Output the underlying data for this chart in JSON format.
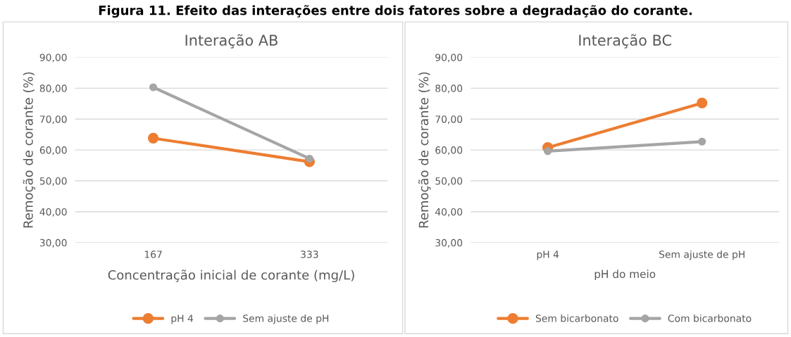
{
  "chart_data": [
    {
      "type": "line",
      "title": "Interação AB",
      "xlabel": "Concentração inicial de corante (mg/L)",
      "ylabel": "Remoção de corante (%)",
      "categories": [
        "167",
        "333"
      ],
      "series": [
        {
          "name": "pH 4",
          "color": "#ed7d31",
          "values": [
            63.8,
            56.2
          ]
        },
        {
          "name": "Sem ajuste de pH",
          "color": "#a5a5a5",
          "values": [
            80.3,
            57.2
          ]
        }
      ],
      "ylim": [
        30,
        90
      ],
      "yticks": [
        {
          "value": 30,
          "label": "30,00"
        },
        {
          "value": 40,
          "label": "40,00"
        },
        {
          "value": 50,
          "label": "50,00"
        },
        {
          "value": 60,
          "label": "60,00"
        },
        {
          "value": 70,
          "label": "70,00"
        },
        {
          "value": 80,
          "label": "80,00"
        },
        {
          "value": 90,
          "label": "90,00"
        }
      ],
      "grid": "y",
      "legend": "bottom",
      "marker": "circle",
      "line_style": "solid",
      "annotations": [
        "Figura 11. Efeito das interações entre dois fatores sobre a degradação do corante."
      ]
    },
    {
      "type": "line",
      "title": "Interação BC",
      "xlabel": "pH do meio",
      "ylabel": "Remoção de corante (%)",
      "categories": [
        "pH 4",
        "Sem ajuste de pH"
      ],
      "series": [
        {
          "name": "Sem bicarbonato",
          "color": "#ed7d31",
          "values": [
            60.8,
            75.2
          ]
        },
        {
          "name": "Com bicarbonato",
          "color": "#a5a5a5",
          "values": [
            59.6,
            62.7
          ]
        }
      ],
      "ylim": [
        30,
        90
      ],
      "yticks": [
        {
          "value": 30,
          "label": "30,00"
        },
        {
          "value": 40,
          "label": "40,00"
        },
        {
          "value": 50,
          "label": "50,00"
        },
        {
          "value": 60,
          "label": "60,00"
        },
        {
          "value": 70,
          "label": "70,00"
        },
        {
          "value": 80,
          "label": "80,00"
        },
        {
          "value": 90,
          "label": "90,00"
        }
      ],
      "grid": "y",
      "legend": "bottom",
      "marker": "circle",
      "line_style": "solid"
    }
  ]
}
